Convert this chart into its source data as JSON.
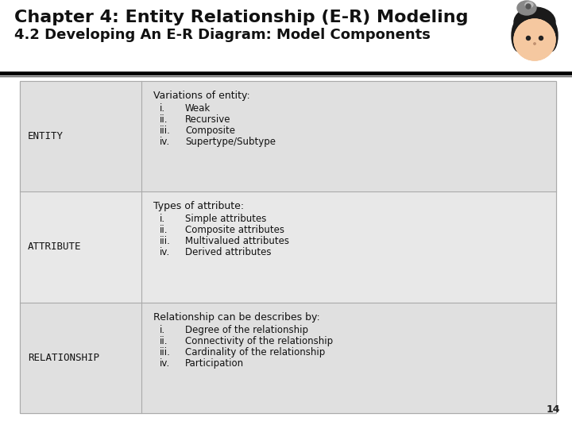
{
  "title_line1": "Chapter 4: Entity Relationship (E-R) Modeling",
  "title_line2": "4.2 Developing An E-R Diagram: Model Components",
  "page_bg": "#ffffff",
  "header_bg": "#ffffff",
  "table_bg_odd": "#e0e0e0",
  "table_bg_even": "#ececec",
  "divider_color": "#aaaaaa",
  "page_number": "14",
  "rows": [
    {
      "label": "ENTITY",
      "bg": "#e0e0e0",
      "header": "Variations of entity:",
      "header_bold": false,
      "items": [
        [
          "i.",
          "Weak"
        ],
        [
          "ii.",
          "Recursive"
        ],
        [
          "iii.",
          "Composite"
        ],
        [
          "iv.",
          "Supertype/Subtype"
        ]
      ]
    },
    {
      "label": "ATTRIBUTE",
      "bg": "#e8e8e8",
      "header": "Types of attribute:",
      "header_bold": false,
      "items": [
        [
          "i.",
          "Simple attributes"
        ],
        [
          "ii.",
          "Composite attributes"
        ],
        [
          "iii.",
          "Multivalued attributes"
        ],
        [
          "iv.",
          "Derived attributes"
        ]
      ]
    },
    {
      "label": "RELATIONSHIP",
      "bg": "#e0e0e0",
      "header": "Relationship can be describes by:",
      "header_bold": false,
      "items": [
        [
          "i.",
          "Degree of the relationship"
        ],
        [
          "ii.",
          "Connectivity of the relationship"
        ],
        [
          "iii.",
          "Cardinality of the relationship"
        ],
        [
          "iv.",
          "Participation"
        ]
      ]
    }
  ]
}
